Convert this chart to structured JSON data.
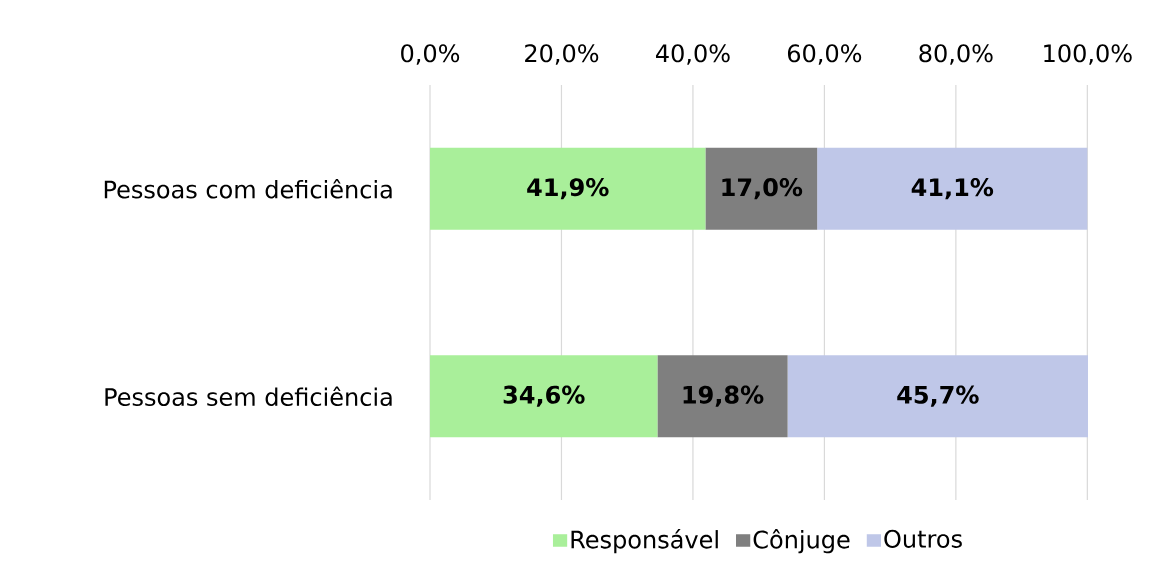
{
  "chart_data": {
    "type": "bar",
    "orientation": "horizontal",
    "stacked": true,
    "categories": [
      "Pessoas com deficiência",
      "Pessoas sem deficiência"
    ],
    "series": [
      {
        "name": "Responsável",
        "color": "#a9ef9a",
        "values": [
          41.9,
          34.6
        ],
        "value_labels": [
          "41,9%",
          "34,6%"
        ]
      },
      {
        "name": "Cônjuge",
        "color": "#7f7f7f",
        "values": [
          17.0,
          19.8
        ],
        "value_labels": [
          "17,0%",
          "19,8%"
        ]
      },
      {
        "name": "Outros",
        "color": "#bfc7e8",
        "values": [
          41.1,
          45.7
        ],
        "value_labels": [
          "41,1%",
          "45,7%"
        ]
      }
    ],
    "xlim": [
      0,
      100.1
    ],
    "xticks": [
      {
        "value": 0,
        "label": "0,0%"
      },
      {
        "value": 20,
        "label": "20,0%"
      },
      {
        "value": 40,
        "label": "40,0%"
      },
      {
        "value": 60,
        "label": "60,0%"
      },
      {
        "value": 80,
        "label": "80,0%"
      },
      {
        "value": 100,
        "label": "100,0%"
      }
    ],
    "grid": "x",
    "legend": "bottom"
  }
}
